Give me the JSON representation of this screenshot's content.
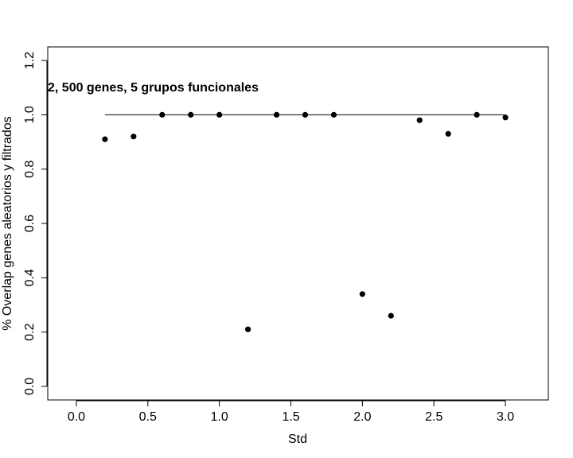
{
  "chart_data": {
    "type": "scatter",
    "title": "",
    "annotation": "2, 500 genes, 5 grupos funcionales",
    "xlabel": "Std",
    "ylabel": "% Overlap genes aleatorios y filtrados",
    "xlim": [
      -0.2,
      3.3
    ],
    "ylim": [
      -0.05,
      1.25
    ],
    "x_ticks": [
      0.0,
      0.5,
      1.0,
      1.5,
      2.0,
      2.5,
      3.0
    ],
    "x_tick_labels": [
      "0.0",
      "0.5",
      "1.0",
      "1.5",
      "2.0",
      "2.5",
      "3.0"
    ],
    "y_ticks": [
      0.0,
      0.2,
      0.4,
      0.6,
      0.8,
      1.0,
      1.2
    ],
    "y_tick_labels": [
      "0.0",
      "0.2",
      "0.4",
      "0.6",
      "0.8",
      "1.0",
      "1.2"
    ],
    "grid": false,
    "reference_line": {
      "y": 1.0,
      "x_from": 0.2,
      "x_to": 3.0
    },
    "points": [
      {
        "x": 0.2,
        "y": 0.91
      },
      {
        "x": 0.4,
        "y": 0.92
      },
      {
        "x": 0.6,
        "y": 1.0
      },
      {
        "x": 0.8,
        "y": 1.0
      },
      {
        "x": 1.0,
        "y": 1.0
      },
      {
        "x": 1.2,
        "y": 0.21
      },
      {
        "x": 1.4,
        "y": 1.0
      },
      {
        "x": 1.6,
        "y": 1.0
      },
      {
        "x": 1.8,
        "y": 1.0
      },
      {
        "x": 2.0,
        "y": 0.34
      },
      {
        "x": 2.2,
        "y": 0.26
      },
      {
        "x": 2.4,
        "y": 0.98
      },
      {
        "x": 2.6,
        "y": 0.93
      },
      {
        "x": 2.8,
        "y": 1.0
      },
      {
        "x": 3.0,
        "y": 0.99
      }
    ],
    "colors": {
      "points": "#000000",
      "line": "#000000",
      "axes": "#000000"
    }
  }
}
